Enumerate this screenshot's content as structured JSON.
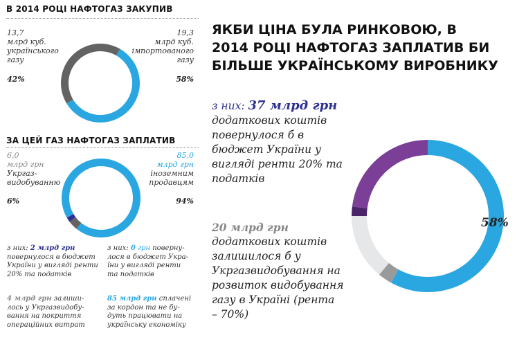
{
  "colors": {
    "blue": "#2aa7e0",
    "dark_grey": "#636363",
    "light_grey": "#e6e7e8",
    "mid_grey": "#9a9a9a",
    "purple": "#7b3f98",
    "navy": "#2e3192",
    "dark_purple": "#4a2368"
  },
  "chart_data": [
    {
      "type": "pie",
      "title": "В 2014 РОЦІ НАФТОГАЗ ЗАКУПИВ",
      "series": [
        {
          "name": "українського газу",
          "value": 13.7,
          "unit": "млрд куб.",
          "percent": 42,
          "color": "#636363"
        },
        {
          "name": "імпортованого газу",
          "value": 19.3,
          "unit": "млрд куб.",
          "percent": 58,
          "color": "#2aa7e0"
        }
      ]
    },
    {
      "type": "pie",
      "title": "ЗА ЦЕЙ ГАЗ НАФТОГАЗ ЗАПЛАТИВ",
      "series": [
        {
          "name": "Укргазвидобуванню",
          "value": 6.0,
          "unit": "млрд грн",
          "percent": 6,
          "color": "#636363"
        },
        {
          "name": "іноземним продавцям",
          "value": 85.0,
          "unit": "млрд грн",
          "percent": 94,
          "color": "#2aa7e0"
        }
      ],
      "sub_slices": [
        {
          "name": "повернулося в бюджет",
          "value": 2,
          "color": "#2e3192"
        },
        {
          "name": "залишилося у Укргазвидобування",
          "value": 4,
          "color": "#636363"
        }
      ]
    },
    {
      "type": "pie",
      "title": "ЯКБИ ЦІНА БУЛА РИНКОВОЮ, В 2014 РОЦІ НАФТОГАЗ ЗАПЛАТИВ БИ БІЛЬШЕ УКРАЇНСЬКОМУ ВИРОБНИКУ",
      "series": [
        {
          "name": "іноземним продавцям",
          "percent": 58,
          "color": "#2aa7e0"
        },
        {
          "name": "залишилося у Укргазвидобування",
          "percent": 3,
          "color": "#9a9a9a"
        },
        {
          "name": "20 млрд грн",
          "percent": 14,
          "color": "#e6e7e8"
        },
        {
          "name": "повернулося в бюджет",
          "percent": 2,
          "color": "#4a2368"
        },
        {
          "name": "37 млрд грн",
          "percent": 23,
          "color": "#7b3f98"
        }
      ],
      "center_label": "58%"
    }
  ],
  "chart1": {
    "title": "В 2014 РОЦІ НАФТОГАЗ ЗАКУПИВ",
    "left_value": "13,7",
    "left_text": [
      "млрд куб.",
      "українського",
      "газу"
    ],
    "left_pct": "42%",
    "right_value": "19,3",
    "right_text": [
      "млрд куб.",
      "імпортованого",
      "газу"
    ],
    "right_pct": "58%"
  },
  "chart2": {
    "title": "ЗА ЦЕЙ ГАЗ НАФТОГАЗ ЗАПЛАТИВ",
    "left_value": "6,0",
    "left_unit": "млрд грн",
    "left_text": [
      "Укргаз-",
      "видобуванню"
    ],
    "left_pct": "6%",
    "right_value": "85,0",
    "right_unit": "млрд грн",
    "right_text": [
      "іноземним",
      "продавцям"
    ],
    "right_pct": "94%"
  },
  "notes": {
    "n1_prefix": "з них: ",
    "n1_amount": "2 млрд грн",
    "n1_lines": [
      " повернулося в бюджет",
      "України у вигляді ренти",
      "20% та податків"
    ],
    "n2_prefix": "з них: ",
    "n2_amount": "0",
    "n2_unit": " грн",
    "n2_lines": [
      " поверну-",
      "лося в бюджет Укра-",
      "їни у вигляді ренти",
      "та податків"
    ],
    "n3_amount": "4 млрд грн",
    "n3_lines": [
      " залиши-",
      "лось у Укргазвидобу-",
      "вання на покриття",
      "операційних витрат"
    ],
    "n4_amount": "85 млрд грн",
    "n4_lines": [
      " сплачені",
      "за кордон та не бу-",
      "дуть працювати на",
      "українську економіку"
    ]
  },
  "chart3": {
    "title_lines": [
      "ЯКБИ ЦІНА БУЛА РИНКОВОЮ, В",
      "2014 РОЦІ НАФТОГАЗ ЗАПЛАТИВ БИ",
      "БІЛЬШЕ УКРАЇНСЬКОМУ ВИРОБНИКУ"
    ],
    "t1_lead": "з них: ",
    "t1_amount": "37 млрд грн",
    "t1_lines": [
      "додаткових коштів",
      "повернулося б в",
      "бюджет України у",
      "вигляді ренти 20% та",
      "податків"
    ],
    "t2_amount": "20 млрд грн",
    "t2_lines": [
      "додаткових коштів",
      "залишилося б у",
      "Укргазвидобування на",
      "розвиток видобування",
      "газу в Україні (рента",
      "– 70%)"
    ],
    "pct": "58%"
  }
}
